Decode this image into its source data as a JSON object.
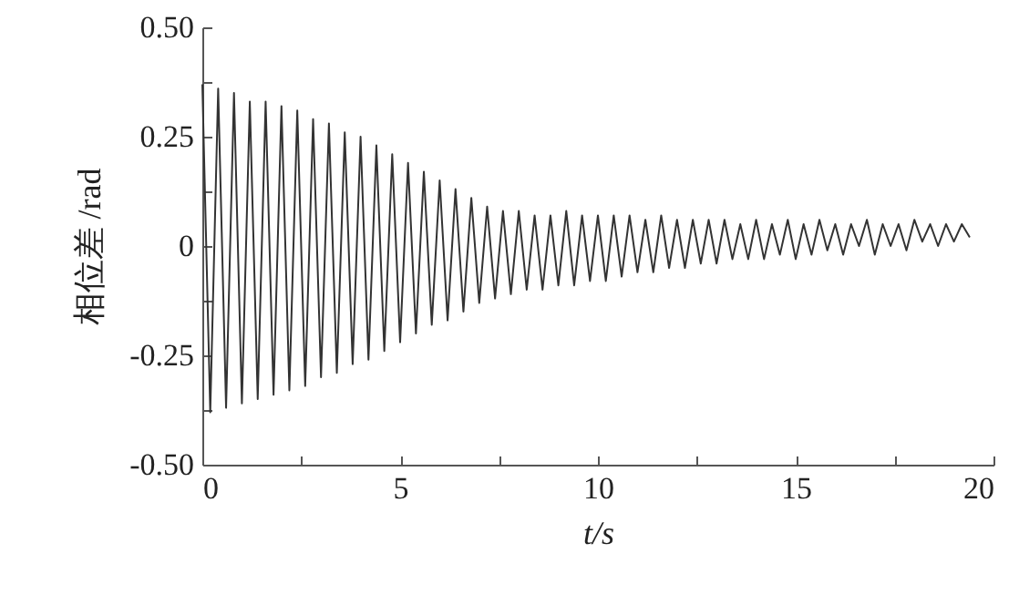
{
  "chart_data": {
    "type": "line",
    "xlabel": "t/s",
    "ylabel": "相位差 /rad",
    "xlim": [
      0,
      20
    ],
    "ylim": [
      -0.5,
      0.5
    ],
    "xticks": [
      0,
      {
        "value": 2.5,
        "label": null
      },
      5,
      {
        "value": 7.5,
        "label": null
      },
      10,
      {
        "value": 12.5,
        "label": null
      },
      15,
      {
        "value": 17.5,
        "label": null
      },
      20
    ],
    "yticks": [
      {
        "value": -0.5,
        "label": "-0.50"
      },
      {
        "value": -0.375,
        "label": null
      },
      -0.25,
      {
        "value": -0.125,
        "label": null
      },
      0,
      {
        "value": 0.125,
        "label": null
      },
      0.25,
      {
        "value": 0.375,
        "label": null
      },
      {
        "value": 0.5,
        "label": "0.50"
      }
    ],
    "grid": false,
    "marker": "none",
    "line_style": "solid",
    "x": [
      0,
      0.2,
      0.4,
      0.6,
      0.8,
      1.0,
      1.2,
      1.4,
      1.6,
      1.8,
      2.0,
      2.2,
      2.4,
      2.6,
      2.8,
      3.0,
      3.2,
      3.4,
      3.6,
      3.8,
      4.0,
      4.2,
      4.4,
      4.6,
      4.8,
      5.0,
      5.2,
      5.4,
      5.6,
      5.8,
      6.0,
      6.2,
      6.4,
      6.6,
      6.8,
      7.0,
      7.2,
      7.4,
      7.6,
      7.8,
      8.0,
      8.2,
      8.4,
      8.6,
      8.8,
      9.0,
      9.2,
      9.4,
      9.6,
      9.8,
      10.0,
      10.2,
      10.4,
      10.6,
      10.8,
      11.0,
      11.2,
      11.4,
      11.6,
      11.8,
      12.0,
      12.2,
      12.4,
      12.6,
      12.8,
      13.0,
      13.2,
      13.4,
      13.6,
      13.8,
      14.0,
      14.2,
      14.4,
      14.6,
      14.8,
      15.0,
      15.2,
      15.4,
      15.6,
      15.8,
      16.0,
      16.2,
      16.4,
      16.6,
      16.8,
      17.0,
      17.2,
      17.4,
      17.6,
      17.8,
      18.0,
      18.2,
      18.4,
      18.6,
      18.8,
      19.0,
      19.2,
      19.4
    ],
    "series": [
      {
        "color": "#333333",
        "values": [
          0.37,
          -0.38,
          0.36,
          -0.37,
          0.35,
          -0.36,
          0.33,
          -0.35,
          0.33,
          -0.34,
          0.32,
          -0.33,
          0.31,
          -0.32,
          0.29,
          -0.3,
          0.28,
          -0.29,
          0.26,
          -0.27,
          0.25,
          -0.26,
          0.23,
          -0.24,
          0.21,
          -0.22,
          0.19,
          -0.2,
          0.17,
          -0.18,
          0.15,
          -0.17,
          0.13,
          -0.15,
          0.11,
          -0.13,
          0.09,
          -0.12,
          0.08,
          -0.11,
          0.08,
          -0.1,
          0.07,
          -0.1,
          0.07,
          -0.09,
          0.08,
          -0.09,
          0.07,
          -0.08,
          0.07,
          -0.08,
          0.07,
          -0.07,
          0.07,
          -0.06,
          0.06,
          -0.06,
          0.07,
          -0.05,
          0.06,
          -0.05,
          0.06,
          -0.04,
          0.06,
          -0.04,
          0.06,
          -0.03,
          0.05,
          -0.03,
          0.06,
          -0.03,
          0.05,
          -0.02,
          0.06,
          -0.03,
          0.05,
          -0.02,
          0.06,
          -0.01,
          0.05,
          -0.02,
          0.05,
          0.0,
          0.06,
          -0.02,
          0.05,
          0.0,
          0.05,
          -0.01,
          0.06,
          0.01,
          0.05,
          0.0,
          0.05,
          0.01,
          0.05,
          0.02
        ]
      }
    ]
  }
}
